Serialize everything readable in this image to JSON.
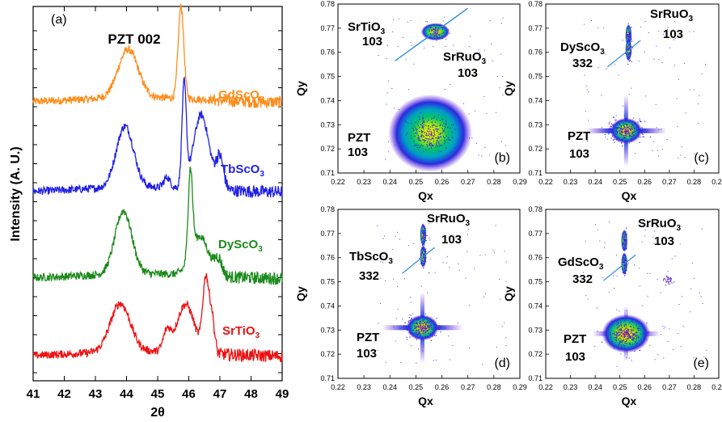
{
  "chart_data": [
    {
      "type": "line",
      "panel_label": "(a)",
      "xlabel": "2θ",
      "ylabel": "Intensity (A. U.)",
      "xlim": [
        41,
        49
      ],
      "x_ticks": [
        "41",
        "42",
        "43",
        "44",
        "45",
        "46",
        "47",
        "48",
        "49"
      ],
      "annotation": "PZT 002",
      "y_scale": "arbitrary, vertically offset traces",
      "series": [
        {
          "name": "GdScO3",
          "label_main": "GdScO",
          "label_sub": "3",
          "color": "#ff8c1a",
          "offset": 3,
          "peaks": [
            {
              "pos": 44.05,
              "height": 0.55,
              "width": 0.32
            },
            {
              "pos": 45.75,
              "height": 1.05,
              "width": 0.09
            }
          ]
        },
        {
          "name": "TbScO3",
          "label_main": "TbScO",
          "label_sub": "3",
          "color": "#1f1fe6",
          "offset": 2,
          "peaks": [
            {
              "pos": 43.95,
              "height": 0.7,
              "width": 0.28
            },
            {
              "pos": 45.3,
              "height": 0.12,
              "width": 0.1
            },
            {
              "pos": 45.85,
              "height": 1.15,
              "width": 0.07
            },
            {
              "pos": 46.4,
              "height": 0.85,
              "width": 0.25
            },
            {
              "pos": 47.0,
              "height": 0.35,
              "width": 0.12
            }
          ]
        },
        {
          "name": "DyScO3",
          "label_main": "DyScO",
          "label_sub": "3",
          "color": "#1a8a1a",
          "offset": 1,
          "peaks": [
            {
              "pos": 43.9,
              "height": 0.72,
              "width": 0.27
            },
            {
              "pos": 46.05,
              "height": 0.98,
              "width": 0.07
            },
            {
              "pos": 46.35,
              "height": 0.45,
              "width": 0.28
            },
            {
              "pos": 46.95,
              "height": 0.18,
              "width": 0.12
            }
          ]
        },
        {
          "name": "SrTiO3",
          "label_main": "SrTiO",
          "label_sub": "3",
          "color": "#ee1111",
          "offset": 0,
          "peaks": [
            {
              "pos": 43.8,
              "height": 0.55,
              "width": 0.32
            },
            {
              "pos": 45.3,
              "height": 0.22,
              "width": 0.12
            },
            {
              "pos": 45.9,
              "height": 0.55,
              "width": 0.28
            },
            {
              "pos": 46.55,
              "height": 0.85,
              "width": 0.1
            },
            {
              "pos": 46.75,
              "height": 0.38,
              "width": 0.08
            }
          ]
        }
      ]
    },
    {
      "type": "heatmap",
      "panel_label": "(b)",
      "xlabel": "Qx",
      "ylabel": "Qy",
      "xlim": [
        0.22,
        0.29
      ],
      "ylim": [
        0.71,
        0.78
      ],
      "x_ticks": [
        "0.22",
        "0.23",
        "0.24",
        "0.25",
        "0.26",
        "0.27",
        "0.28",
        "0.29"
      ],
      "y_ticks": [
        "0.71",
        "0.72",
        "0.73",
        "0.74",
        "0.75",
        "0.76",
        "0.77",
        "0.78"
      ],
      "peaks": [
        {
          "name": "PZT 103",
          "qx": 0.2555,
          "qy": 0.7265
        },
        {
          "name": "SrTiO3 103",
          "qx": 0.2575,
          "qy": 0.7685
        }
      ],
      "labels": [
        {
          "main": "SrTiO",
          "sub": "3",
          "second": "103"
        },
        {
          "main": "SrRuO",
          "sub": "3",
          "second": "103"
        },
        {
          "main": "PZT",
          "sub": "",
          "second": "103"
        }
      ]
    },
    {
      "type": "heatmap",
      "panel_label": "(c)",
      "xlabel": "Qx",
      "ylabel": "Qy",
      "xlim": [
        0.22,
        0.29
      ],
      "ylim": [
        0.71,
        0.78
      ],
      "x_ticks": [
        "0.22",
        "0.23",
        "0.24",
        "0.25",
        "0.26",
        "0.27",
        "0.28",
        "0.29"
      ],
      "y_ticks": [
        "0.71",
        "0.72",
        "0.73",
        "0.74",
        "0.75",
        "0.76",
        "0.77",
        "0.78"
      ],
      "peaks": [
        {
          "name": "PZT 103",
          "qx": 0.2525,
          "qy": 0.7275
        },
        {
          "name": "SrRuO3 103",
          "qx": 0.2535,
          "qy": 0.767
        },
        {
          "name": "DyScO3 332",
          "qx": 0.2535,
          "qy": 0.761
        }
      ],
      "labels": [
        {
          "main": "SrRuO",
          "sub": "3",
          "second": "103"
        },
        {
          "main": "DyScO",
          "sub": "3",
          "second": "332"
        },
        {
          "main": "PZT",
          "sub": "",
          "second": "103"
        }
      ]
    },
    {
      "type": "heatmap",
      "panel_label": "(d)",
      "xlabel": "Qx",
      "ylabel": "Qy",
      "xlim": [
        0.22,
        0.29
      ],
      "ylim": [
        0.71,
        0.78
      ],
      "x_ticks": [
        "0.22",
        "0.23",
        "0.24",
        "0.25",
        "0.26",
        "0.27",
        "0.28",
        "0.29"
      ],
      "y_ticks": [
        "0.71",
        "0.72",
        "0.73",
        "0.74",
        "0.75",
        "0.76",
        "0.77",
        "0.78"
      ],
      "peaks": [
        {
          "name": "PZT 103",
          "qx": 0.2525,
          "qy": 0.731
        },
        {
          "name": "SrRuO3 103",
          "qx": 0.2528,
          "qy": 0.7695
        },
        {
          "name": "TbScO3 332",
          "qx": 0.2528,
          "qy": 0.7605
        }
      ],
      "labels": [
        {
          "main": "SrRuO",
          "sub": "3",
          "second": "103"
        },
        {
          "main": "TbScO",
          "sub": "3",
          "second": "332"
        },
        {
          "main": "PZT",
          "sub": "",
          "second": "103"
        }
      ]
    },
    {
      "type": "heatmap",
      "panel_label": "(e)",
      "xlabel": "Qx",
      "ylabel": "Qy",
      "xlim": [
        0.22,
        0.29
      ],
      "ylim": [
        0.71,
        0.78
      ],
      "x_ticks": [
        "0.22",
        "0.23",
        "0.24",
        "0.25",
        "0.26",
        "0.27",
        "0.28",
        "0.29"
      ],
      "y_ticks": [
        "0.71",
        "0.72",
        "0.73",
        "0.74",
        "0.75",
        "0.76",
        "0.77",
        "0.78"
      ],
      "peaks": [
        {
          "name": "PZT 103",
          "qx": 0.2525,
          "qy": 0.7285
        },
        {
          "name": "SrRuO3 103",
          "qx": 0.2518,
          "qy": 0.767
        },
        {
          "name": "GdScO3 332",
          "qx": 0.2518,
          "qy": 0.7575
        }
      ],
      "labels": [
        {
          "main": "SrRuO",
          "sub": "3",
          "second": "103"
        },
        {
          "main": "GdScO",
          "sub": "3",
          "second": "332"
        },
        {
          "main": "PZT",
          "sub": "",
          "second": "103"
        }
      ]
    }
  ]
}
